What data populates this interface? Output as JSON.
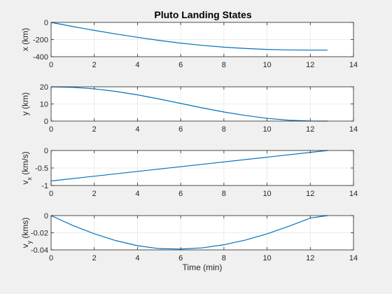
{
  "figure": {
    "title": "Pluto Landing States",
    "background": "#f0f0f0",
    "axes_background": "#ffffff",
    "line_color": "#0072bd",
    "grid_color": "#e6e6e6"
  },
  "chart_data": [
    {
      "type": "line",
      "title": "Pluto Landing States",
      "xlabel": "",
      "ylabel": "x (km)",
      "xlim": [
        0,
        14
      ],
      "ylim": [
        -400,
        0
      ],
      "xticks": [
        0,
        2,
        4,
        6,
        8,
        10,
        12,
        14
      ],
      "yticks": [
        -400,
        -200,
        0
      ],
      "xtick_labels": [
        "0",
        "2",
        "4",
        "6",
        "8",
        "10",
        "12",
        "14"
      ],
      "ytick_labels": [
        "-400",
        "-200",
        "0"
      ],
      "grid": true,
      "series": [
        {
          "x": [
            0,
            1,
            2,
            3,
            4,
            5,
            6,
            7,
            8,
            9,
            10,
            11,
            12,
            12.8
          ],
          "y": [
            0,
            -48,
            -93,
            -135,
            -174,
            -210,
            -242,
            -268,
            -289,
            -304,
            -315,
            -321,
            -323,
            -323
          ]
        }
      ]
    },
    {
      "type": "line",
      "title": "",
      "xlabel": "",
      "ylabel": "y (km)",
      "xlim": [
        0,
        14
      ],
      "ylim": [
        0,
        20
      ],
      "xticks": [
        0,
        2,
        4,
        6,
        8,
        10,
        12,
        14
      ],
      "yticks": [
        0,
        10,
        20
      ],
      "xtick_labels": [
        "0",
        "2",
        "4",
        "6",
        "8",
        "10",
        "12",
        "14"
      ],
      "ytick_labels": [
        "0",
        "10",
        "20"
      ],
      "grid": true,
      "series": [
        {
          "x": [
            0,
            1,
            2,
            3,
            4,
            5,
            6,
            7,
            8,
            9,
            10,
            11,
            12,
            12.8
          ],
          "y": [
            20,
            19.7,
            18.8,
            17.3,
            15.3,
            12.9,
            10.3,
            7.7,
            5.3,
            3.3,
            1.6,
            0.5,
            0.05,
            0
          ]
        }
      ]
    },
    {
      "type": "line",
      "title": "",
      "xlabel": "",
      "ylabel": "v",
      "ylabel_sub": "x",
      "ylabel_unit": "(km/s)",
      "xlim": [
        0,
        14
      ],
      "ylim": [
        -1,
        0
      ],
      "xticks": [
        0,
        2,
        4,
        6,
        8,
        10,
        12,
        14
      ],
      "yticks": [
        -1,
        -0.5,
        0
      ],
      "xtick_labels": [
        "0",
        "2",
        "4",
        "6",
        "8",
        "10",
        "12",
        "14"
      ],
      "ytick_labels": [
        "-1",
        "-0.5",
        "0"
      ],
      "grid": true,
      "series": [
        {
          "x": [
            0,
            12.8
          ],
          "y": [
            -0.87,
            0
          ]
        }
      ]
    },
    {
      "type": "line",
      "title": "",
      "xlabel": "Time (min)",
      "ylabel": "v",
      "ylabel_sub": "y",
      "ylabel_unit": "(kms)",
      "xlim": [
        0,
        14
      ],
      "ylim": [
        -0.04,
        0
      ],
      "xticks": [
        0,
        2,
        4,
        6,
        8,
        10,
        12,
        14
      ],
      "yticks": [
        -0.04,
        -0.02,
        0
      ],
      "xtick_labels": [
        "0",
        "2",
        "4",
        "6",
        "8",
        "10",
        "12",
        "14"
      ],
      "ytick_labels": [
        "-0.04",
        "-0.02",
        "0"
      ],
      "grid": true,
      "series": [
        {
          "x": [
            0,
            1,
            2,
            3,
            4,
            5,
            6,
            7,
            8,
            9,
            10,
            11,
            12,
            12.8
          ],
          "y": [
            0,
            -0.0115,
            -0.0212,
            -0.0292,
            -0.0351,
            -0.0385,
            -0.039,
            -0.0376,
            -0.034,
            -0.0285,
            -0.0213,
            -0.0125,
            -0.0029,
            0
          ]
        }
      ]
    }
  ]
}
